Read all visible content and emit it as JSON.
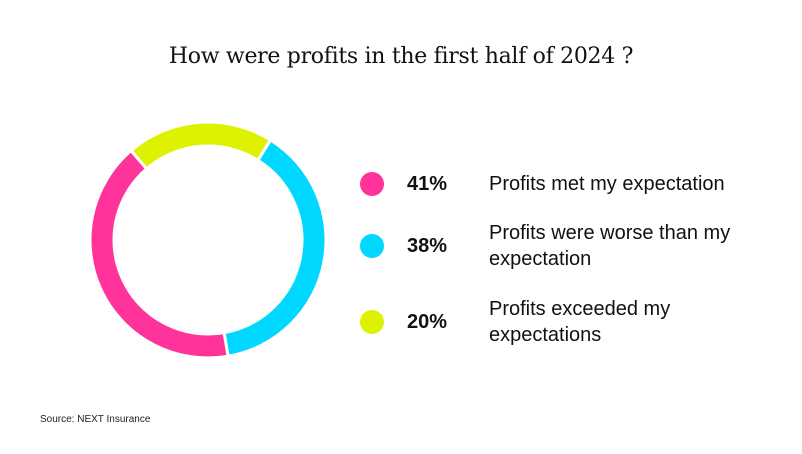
{
  "chart_data": {
    "type": "pie",
    "title": "How were profits in the first half of 2024 ?",
    "slices": [
      {
        "label": "Profits met my expectation",
        "value": 41,
        "display": "41%",
        "color": "#ff3399"
      },
      {
        "label": "Profits were worse than my expectation",
        "value": 38,
        "display": "38%",
        "color": "#00d8ff"
      },
      {
        "label": "Profits exceeded my expectations",
        "value": 20,
        "display": "20%",
        "color": "#ddf200"
      }
    ],
    "legend_position": "right"
  },
  "source": "Source: NEXT Insurance"
}
